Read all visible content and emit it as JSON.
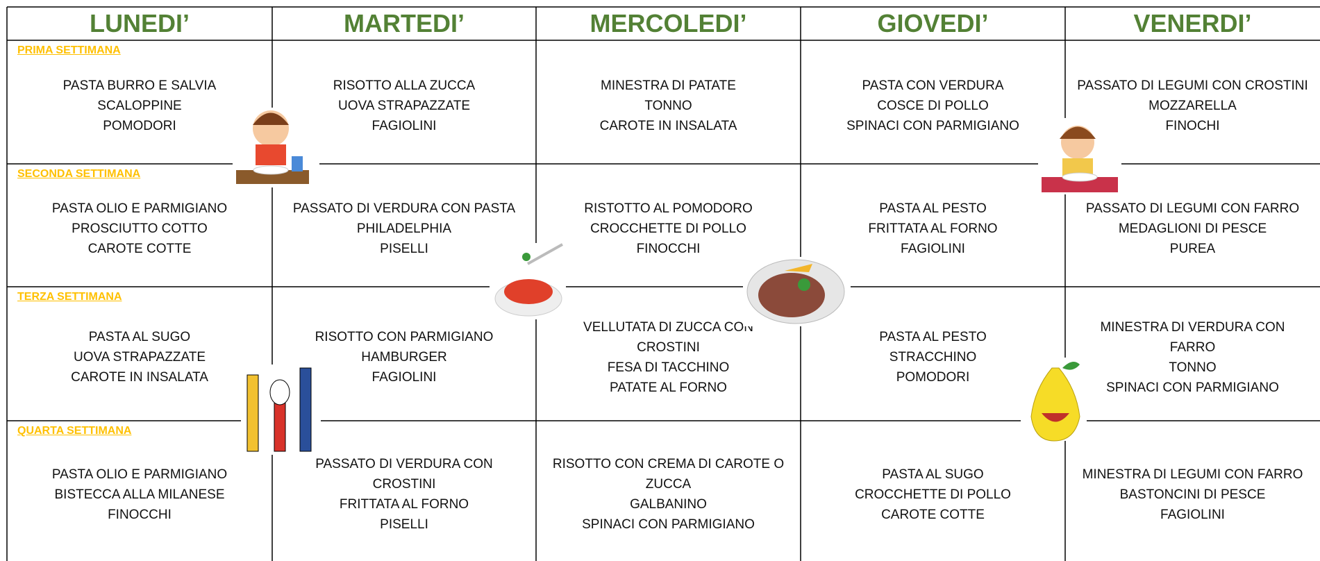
{
  "header": {
    "days": [
      "LUNEDI’",
      "MARTEDI’",
      "MERCOLEDI’",
      "GIOVEDI’",
      "VENERDI’"
    ]
  },
  "weeks": [
    {
      "label": "PRIMA SETTIMANA",
      "days": [
        [
          "PASTA BURRO E SALVIA",
          "SCALOPPINE",
          "POMODORI"
        ],
        [
          "RISOTTO ALLA ZUCCA",
          "UOVA STRAPAZZATE",
          "FAGIOLINI"
        ],
        [
          "MINESTRA DI PATATE",
          "TONNO",
          "CAROTE IN INSALATA"
        ],
        [
          "PASTA CON VERDURA",
          "COSCE DI POLLO",
          "SPINACI CON PARMIGIANO"
        ],
        [
          "PASSATO DI LEGUMI CON CROSTINI",
          "MOZZARELLA",
          "FINOCHI"
        ]
      ]
    },
    {
      "label": "SECONDA SETTIMANA",
      "days": [
        [
          "PASTA OLIO E PARMIGIANO",
          "PROSCIUTTO COTTO",
          "CAROTE COTTE"
        ],
        [
          "PASSATO DI VERDURA CON PASTA",
          "PHILADELPHIA",
          "PISELLI"
        ],
        [
          "RISTOTTO AL POMODORO",
          "CROCCHETTE DI POLLO",
          "FINOCCHI"
        ],
        [
          "PASTA AL PESTO",
          "FRITTATA AL FORNO",
          "FAGIOLINI"
        ],
        [
          "PASSATO DI LEGUMI CON FARRO",
          "MEDAGLIONI DI PESCE",
          "PUREA"
        ]
      ]
    },
    {
      "label": "TERZA SETTIMANA",
      "days": [
        [
          "PASTA AL SUGO",
          "UOVA STRAPAZZATE",
          "CAROTE IN INSALATA"
        ],
        [
          "RISOTTO CON PARMIGIANO",
          "HAMBURGER",
          "FAGIOLINI"
        ],
        [
          "VELLUTATA DI ZUCCA CON",
          "CROSTINI",
          "FESA DI TACCHINO",
          "PATATE AL FORNO"
        ],
        [
          "PASTA AL PESTO",
          "STRACCHINO",
          "POMODORI"
        ],
        [
          "MINESTRA DI VERDURA CON",
          "FARRO",
          "TONNO",
          "SPINACI CON PARMIGIANO"
        ]
      ]
    },
    {
      "label": "QUARTA SETTIMANA",
      "days": [
        [
          "PASTA OLIO E PARMIGIANO",
          "BISTECCA ALLA MILANESE",
          "FINOCCHI"
        ],
        [
          "PASSATO DI VERDURA CON",
          "CROSTINI",
          "FRITTATA AL FORNO",
          "PISELLI"
        ],
        [
          "RISOTTO CON CREMA DI CAROTE O",
          "ZUCCA",
          "GALBANINO",
          "SPINACI CON PARMIGIANO"
        ],
        [
          "PASTA AL SUGO",
          "CROCCHETTE DI POLLO",
          "CAROTE COTTE"
        ],
        [
          "MINESTRA DI LEGUMI CON FARRO",
          "BASTONCINI DI PESCE",
          "FAGIOLINI"
        ]
      ]
    }
  ]
}
